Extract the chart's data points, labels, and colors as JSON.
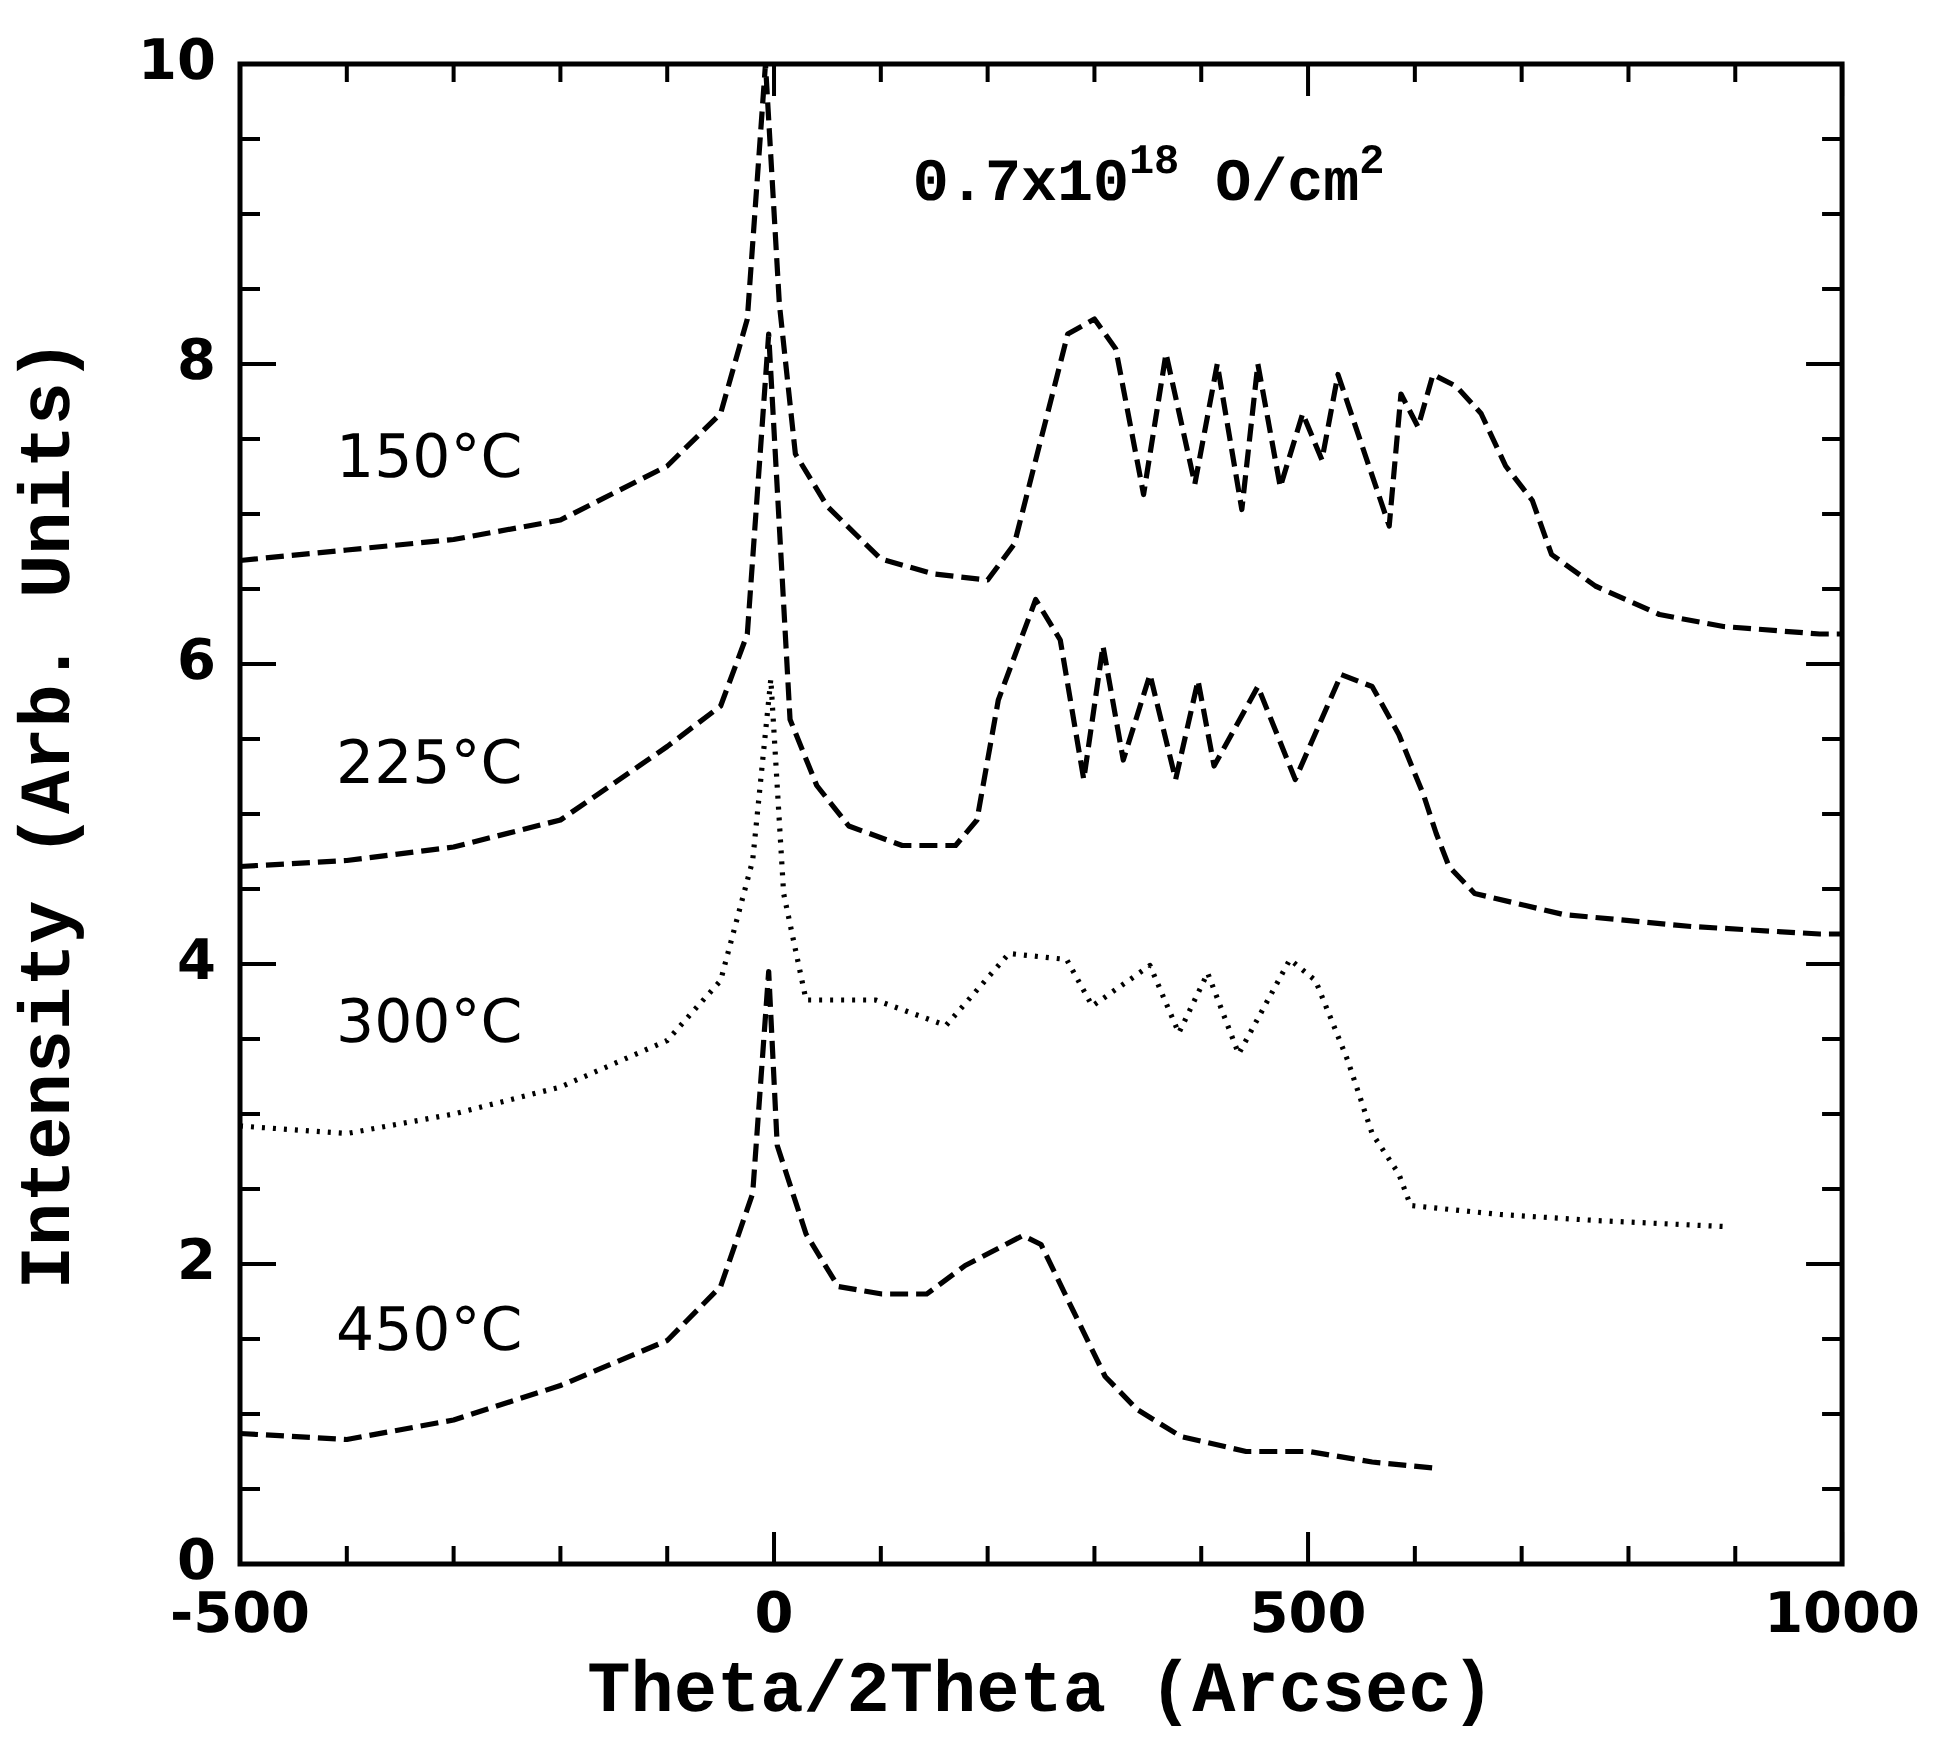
{
  "chart_data": {
    "type": "line",
    "xlabel": "Theta/2Theta (Arcsec)",
    "ylabel": "Intensity (Arb. Units)",
    "annotations": [
      "0.7x10$^{18}$ O/cm$^{2}$"
    ],
    "xlim": [
      -500,
      1000
    ],
    "xticks": [
      -500,
      {
        "value": -400,
        "label": null
      },
      {
        "value": -300,
        "label": null
      },
      {
        "value": -200,
        "label": null
      },
      {
        "value": -100,
        "label": null
      },
      0,
      {
        "value": 100,
        "label": null
      },
      {
        "value": 200,
        "label": null
      },
      {
        "value": 300,
        "label": null
      },
      {
        "value": 400,
        "label": null
      },
      500,
      {
        "value": 600,
        "label": null
      },
      {
        "value": 700,
        "label": null
      },
      {
        "value": 800,
        "label": null
      },
      {
        "value": 900,
        "label": null
      },
      1000
    ],
    "ylim": [
      0,
      10
    ],
    "yticks": [
      0,
      {
        "value": 0.5,
        "label": null
      },
      {
        "value": 1,
        "label": null
      },
      {
        "value": 1.5,
        "label": null
      },
      2,
      {
        "value": 2.5,
        "label": null
      },
      {
        "value": 3,
        "label": null
      },
      {
        "value": 3.5,
        "label": null
      },
      4,
      {
        "value": 4.5,
        "label": null
      },
      {
        "value": 5,
        "label": null
      },
      {
        "value": 5.5,
        "label": null
      },
      6,
      {
        "value": 6.5,
        "label": null
      },
      {
        "value": 7,
        "label": null
      },
      {
        "value": 7.5,
        "label": null
      },
      8,
      {
        "value": 8.5,
        "label": null
      },
      {
        "value": 9,
        "label": null
      },
      {
        "value": 9.5,
        "label": null
      },
      10
    ],
    "grid": false,
    "legend": false,
    "marker": "none",
    "series": [
      {
        "name": "150°C",
        "color": "#000000",
        "line_style": "dashed",
        "x": [
          -500,
          -400,
          -300,
          -200,
          -100,
          -50,
          -25,
          -8,
          5,
          20,
          50,
          100,
          150,
          200,
          225,
          250,
          275,
          300,
          320,
          346,
          367,
          394,
          415,
          438,
          453,
          474,
          495,
          513,
          528,
          576,
          587,
          603,
          617,
          639,
          662,
          685,
          710,
          728,
          769,
          829,
          889,
          979,
          1000
        ],
        "values": [
          6.69,
          6.76,
          6.83,
          6.96,
          7.32,
          7.67,
          8.3,
          10,
          8.4,
          7.4,
          7.05,
          6.7,
          6.6,
          6.56,
          6.8,
          7.5,
          8.2,
          8.3,
          8.1,
          7.13,
          8.07,
          7.2,
          8.0,
          7.03,
          8.0,
          7.18,
          7.67,
          7.36,
          7.93,
          6.92,
          7.8,
          7.58,
          7.93,
          7.85,
          7.67,
          7.32,
          7.09,
          6.73,
          6.52,
          6.33,
          6.25,
          6.2,
          6.2
        ]
      },
      {
        "name": "225°C",
        "color": "#000000",
        "line_style": "dashed",
        "x": [
          -500,
          -400,
          -300,
          -200,
          -100,
          -50,
          -25,
          -5,
          15,
          40,
          70,
          120,
          170,
          190,
          210,
          245,
          268,
          290,
          308,
          327,
          352,
          376,
          397,
          412,
          453,
          488,
          531,
          560,
          585,
          608,
          620,
          632,
          656,
          739,
          859,
          979,
          1000
        ],
        "values": [
          4.65,
          4.69,
          4.78,
          4.96,
          5.45,
          5.72,
          6.2,
          8.2,
          5.63,
          5.19,
          4.92,
          4.79,
          4.79,
          4.96,
          5.76,
          6.43,
          6.16,
          5.23,
          6.12,
          5.36,
          5.93,
          5.23,
          5.89,
          5.32,
          5.85,
          5.23,
          5.93,
          5.85,
          5.53,
          5.13,
          4.87,
          4.65,
          4.47,
          4.33,
          4.25,
          4.2,
          4.2
        ]
      },
      {
        "name": "300°C",
        "color": "#000000",
        "line_style": "dotted",
        "x": [
          -500,
          -400,
          -300,
          -200,
          -100,
          -50,
          -20,
          -3,
          9,
          30,
          95,
          161,
          220,
          274,
          298,
          352,
          379,
          406,
          435,
          483,
          507,
          537,
          560,
          585,
          596,
          680,
          769,
          889
        ],
        "values": [
          2.92,
          2.87,
          3.0,
          3.18,
          3.49,
          3.89,
          4.69,
          5.9,
          4.47,
          3.76,
          3.76,
          3.59,
          4.07,
          4.03,
          3.72,
          3.99,
          3.54,
          3.94,
          3.4,
          4.03,
          3.89,
          3.36,
          2.87,
          2.6,
          2.39,
          2.33,
          2.29,
          2.25
        ]
      },
      {
        "name": "450°C",
        "color": "#000000",
        "line_style": "dashed",
        "x": [
          -500,
          -400,
          -300,
          -200,
          -100,
          -50,
          -20,
          -5,
          3,
          30,
          60,
          101,
          143,
          179,
          233,
          250,
          280,
          310,
          340,
          381,
          442,
          501,
          560,
          617
        ],
        "values": [
          0.87,
          0.83,
          0.96,
          1.19,
          1.49,
          1.85,
          2.47,
          3.95,
          2.79,
          2.2,
          1.85,
          1.8,
          1.8,
          1.99,
          2.19,
          2.13,
          1.69,
          1.25,
          1.03,
          0.85,
          0.75,
          0.75,
          0.68,
          0.64
        ]
      }
    ]
  }
}
